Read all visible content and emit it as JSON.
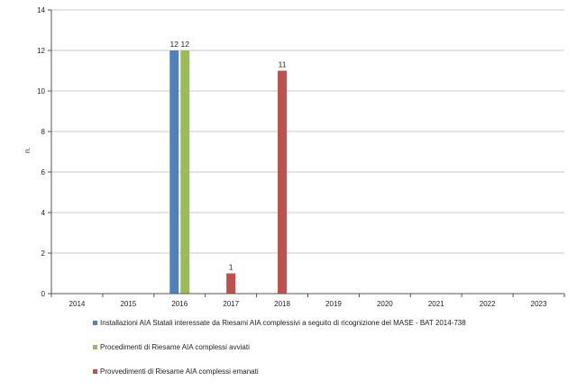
{
  "chart_data": {
    "type": "bar",
    "categories": [
      "2014",
      "2015",
      "2016",
      "2017",
      "2018",
      "2019",
      "2020",
      "2021",
      "2022",
      "2023"
    ],
    "series": [
      {
        "name": "Installazioni AIA Statali interessate da Riesami AIA complessivi a seguito di ricognizione del MASE - BAT 2014-738",
        "color": "#4f81bd",
        "values": [
          null,
          null,
          12,
          null,
          null,
          null,
          null,
          null,
          null,
          null
        ]
      },
      {
        "name": "Procedimenti di Riesame AIA complessi avviati",
        "color": "#9bbb59",
        "values": [
          null,
          null,
          12,
          null,
          null,
          null,
          null,
          null,
          null,
          null
        ]
      },
      {
        "name": "Provvedimenti di Riesame AIA complessi emanati",
        "color": "#c0504d",
        "values": [
          null,
          null,
          null,
          1,
          11,
          null,
          null,
          null,
          null,
          null
        ]
      }
    ],
    "data_labels": [
      {
        "category": "2016",
        "series": 0,
        "text": "12"
      },
      {
        "category": "2016",
        "series": 1,
        "text": "12"
      },
      {
        "category": "2017",
        "series": 2,
        "text": "1"
      },
      {
        "category": "2018",
        "series": 2,
        "text": "11"
      }
    ],
    "ylabel": "n.",
    "ylim": [
      0,
      14
    ],
    "yticks": [
      0,
      2,
      4,
      6,
      8,
      10,
      12,
      14
    ],
    "grid": true,
    "legend_position": "bottom"
  }
}
